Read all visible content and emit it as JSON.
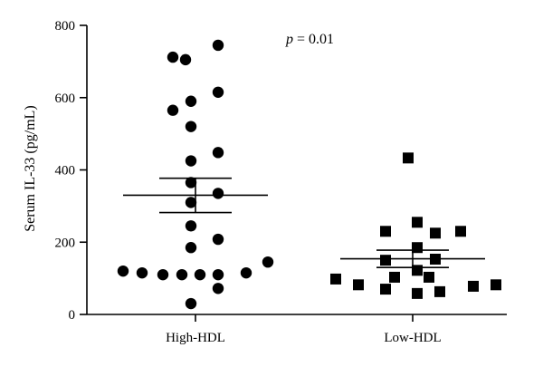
{
  "chart_data": {
    "type": "scatter",
    "ylabel": "Serum IL-33 (pg/mL)",
    "ylim": [
      0,
      800
    ],
    "yticks": [
      0,
      200,
      400,
      600,
      800
    ],
    "categories": [
      "High-HDL",
      "Low-HDL"
    ],
    "annotation": {
      "italic": "p",
      "rest": " = 0.01"
    },
    "grid": false,
    "legend": "none",
    "series": [
      {
        "category": "High-HDL",
        "marker": "circle",
        "mean": 330,
        "sem_lower": 282,
        "sem_upper": 377,
        "points": [
          {
            "offset": -0.25,
            "y": 712
          },
          {
            "offset": -0.11,
            "y": 705
          },
          {
            "offset": 0.25,
            "y": 745
          },
          {
            "offset": -0.05,
            "y": 590
          },
          {
            "offset": 0.25,
            "y": 615
          },
          {
            "offset": -0.25,
            "y": 565
          },
          {
            "offset": -0.05,
            "y": 520
          },
          {
            "offset": 0.25,
            "y": 448
          },
          {
            "offset": -0.05,
            "y": 425
          },
          {
            "offset": -0.05,
            "y": 365
          },
          {
            "offset": 0.25,
            "y": 335
          },
          {
            "offset": -0.05,
            "y": 310
          },
          {
            "offset": -0.05,
            "y": 245
          },
          {
            "offset": 0.25,
            "y": 208
          },
          {
            "offset": -0.05,
            "y": 185
          },
          {
            "offset": 0.8,
            "y": 145
          },
          {
            "offset": -0.8,
            "y": 120
          },
          {
            "offset": -0.59,
            "y": 115
          },
          {
            "offset": 0.56,
            "y": 115
          },
          {
            "offset": -0.36,
            "y": 110
          },
          {
            "offset": -0.15,
            "y": 110
          },
          {
            "offset": 0.05,
            "y": 110
          },
          {
            "offset": 0.25,
            "y": 110
          },
          {
            "offset": 0.25,
            "y": 72
          },
          {
            "offset": -0.05,
            "y": 30
          }
        ]
      },
      {
        "category": "Low-HDL",
        "marker": "square",
        "mean": 154,
        "sem_lower": 130,
        "sem_upper": 178,
        "points": [
          {
            "offset": -0.05,
            "y": 433
          },
          {
            "offset": 0.05,
            "y": 255
          },
          {
            "offset": -0.3,
            "y": 230
          },
          {
            "offset": 0.25,
            "y": 225
          },
          {
            "offset": 0.53,
            "y": 230
          },
          {
            "offset": 0.05,
            "y": 185
          },
          {
            "offset": -0.3,
            "y": 150
          },
          {
            "offset": 0.25,
            "y": 153
          },
          {
            "offset": 0.05,
            "y": 122
          },
          {
            "offset": -0.2,
            "y": 103
          },
          {
            "offset": 0.18,
            "y": 103
          },
          {
            "offset": -0.85,
            "y": 98
          },
          {
            "offset": -0.6,
            "y": 82
          },
          {
            "offset": 0.67,
            "y": 78
          },
          {
            "offset": 0.92,
            "y": 82
          },
          {
            "offset": -0.3,
            "y": 70
          },
          {
            "offset": 0.05,
            "y": 58
          },
          {
            "offset": 0.3,
            "y": 63
          }
        ]
      }
    ]
  }
}
